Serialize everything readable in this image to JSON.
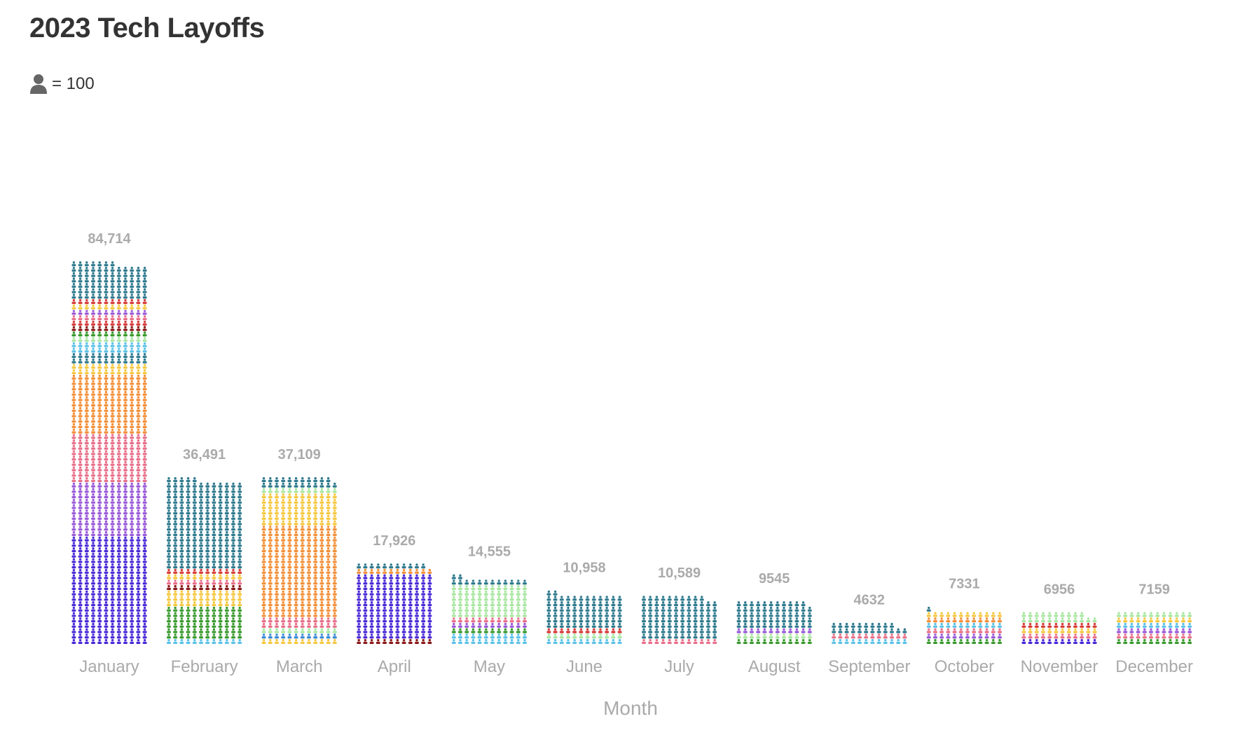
{
  "chart_data": {
    "type": "bar",
    "title": "2023 Tech Layoffs",
    "legend": {
      "unit_value": "= 100",
      "icon": "person-icon",
      "icon_color": "#666666",
      "position": "top-left"
    },
    "xlabel": "Month",
    "categories": [
      "January",
      "February",
      "March",
      "April",
      "May",
      "June",
      "July",
      "August",
      "September",
      "October",
      "November",
      "December"
    ],
    "values": [
      84714,
      36491,
      37109,
      17926,
      14555,
      10958,
      10589,
      9545,
      4632,
      7331,
      6956,
      7159
    ],
    "value_labels": [
      "84,714",
      "36,491",
      "37,109",
      "17,926",
      "14,555",
      "10,958",
      "10,589",
      "9545",
      "4632",
      "7331",
      "6956",
      "7159"
    ],
    "unit_per_icon": 100,
    "icons_per_row": 12,
    "segment_colors": {
      "indigo": "#4b2bd6",
      "purple": "#9a5ad8",
      "pink": "#e8708a",
      "orange": "#f2903a",
      "yellow": "#f5c842",
      "teal": "#2f7a8e",
      "skyblue": "#5cc2e8",
      "lightgreen": "#a8e6a1",
      "green": "#3a9a2e",
      "darkred": "#8a1a1a",
      "red": "#d63a3a",
      "blue": "#3a8ad6",
      "gray": "#666666"
    },
    "segments": [
      [
        [
          "indigo",
          20
        ],
        [
          "purple",
          10
        ],
        [
          "pink",
          9
        ],
        [
          "orange",
          11
        ],
        [
          "yellow",
          2
        ],
        [
          "teal",
          2
        ],
        [
          "skyblue",
          2
        ],
        [
          "lightgreen",
          1
        ],
        [
          "green",
          1
        ],
        [
          "darkred",
          1
        ],
        [
          "red",
          1
        ],
        [
          "pink",
          1
        ],
        [
          "purple",
          1
        ],
        [
          "yellow",
          1
        ],
        [
          "red",
          1
        ],
        [
          "teal",
          18
        ]
      ],
      [
        [
          "skyblue",
          1
        ],
        [
          "green",
          6
        ],
        [
          "yellow",
          3
        ],
        [
          "darkred",
          1
        ],
        [
          "pink",
          1
        ],
        [
          "yellow",
          1
        ],
        [
          "red",
          1
        ],
        [
          "teal",
          17
        ]
      ],
      [
        [
          "yellow",
          1
        ],
        [
          "blue",
          1
        ],
        [
          "lightgreen",
          1
        ],
        [
          "pink",
          2
        ],
        [
          "orange",
          17
        ],
        [
          "yellow",
          6
        ],
        [
          "lightgreen",
          1
        ],
        [
          "teal",
          4
        ]
      ],
      [
        [
          "darkred",
          1
        ],
        [
          "indigo",
          12
        ],
        [
          "orange",
          1
        ],
        [
          "teal",
          5
        ]
      ],
      [
        [
          "skyblue",
          2
        ],
        [
          "green",
          1
        ],
        [
          "purple",
          1
        ],
        [
          "pink",
          1
        ],
        [
          "lightgreen",
          6
        ],
        [
          "teal",
          4
        ]
      ],
      [
        [
          "skyblue",
          1
        ],
        [
          "lightgreen",
          1
        ],
        [
          "red",
          1
        ],
        [
          "teal",
          7
        ]
      ],
      [
        [
          "pink",
          1
        ],
        [
          "teal",
          10
        ]
      ],
      [
        [
          "green",
          1
        ],
        [
          "lightgreen",
          1
        ],
        [
          "purple",
          1
        ],
        [
          "teal",
          7
        ]
      ],
      [
        [
          "skyblue",
          1
        ],
        [
          "pink",
          1
        ],
        [
          "teal",
          3
        ]
      ],
      [
        [
          "green",
          1
        ],
        [
          "purple",
          1
        ],
        [
          "pink",
          1
        ],
        [
          "skyblue",
          1
        ],
        [
          "orange",
          1
        ],
        [
          "yellow",
          1
        ],
        [
          "teal",
          2
        ]
      ],
      [
        [
          "indigo",
          1
        ],
        [
          "pink",
          1
        ],
        [
          "yellow",
          1
        ],
        [
          "red",
          1
        ],
        [
          "lightgreen",
          2
        ],
        [
          "teal",
          1
        ]
      ],
      [
        [
          "green",
          1
        ],
        [
          "pink",
          1
        ],
        [
          "purple",
          1
        ],
        [
          "skyblue",
          1
        ],
        [
          "yellow",
          1
        ],
        [
          "lightgreen",
          2
        ]
      ]
    ],
    "grid": false,
    "label_color": "#aaaaaa"
  }
}
